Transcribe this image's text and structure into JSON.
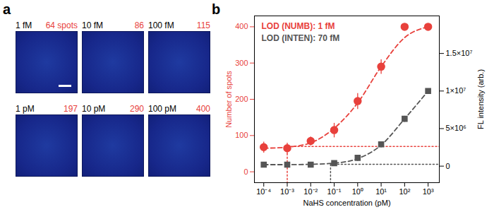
{
  "panel_labels": [
    "a",
    "b"
  ],
  "panel_a": {
    "images": [
      {
        "concentration": "1 fM",
        "count": 64,
        "count_label": "64 spots"
      },
      {
        "concentration": "10 fM",
        "count": 86
      },
      {
        "concentration": "100 fM",
        "count": 115
      },
      {
        "concentration": "1 pM",
        "count": 197
      },
      {
        "concentration": "10 pM",
        "count": 290
      },
      {
        "concentration": "100 pM",
        "count": 400
      }
    ]
  },
  "chart_data": {
    "type": "scatter",
    "log": "x",
    "x_label": "NaHS concentration (pM)",
    "y_label": "Number of spots",
    "y2_label": "FL intensity (arb.)",
    "x": [
      0.0001,
      0.001,
      0.01,
      0.1,
      1,
      10,
      100,
      1000
    ],
    "xlim": [
      4e-05,
      3000
    ],
    "xticks": [
      {
        "value": 0.0001,
        "label": "10⁻⁴"
      },
      {
        "value": 0.001,
        "label": "10⁻³"
      },
      {
        "value": 0.01,
        "label": "10⁻²"
      },
      {
        "value": 0.1,
        "label": "10⁻¹"
      },
      {
        "value": 1,
        "label": "10⁰"
      },
      {
        "value": 10,
        "label": "10¹"
      },
      {
        "value": 100,
        "label": "10²"
      },
      {
        "value": 1000,
        "label": "10³"
      }
    ],
    "ylim": [
      -30,
      430
    ],
    "yticks": [
      0,
      100,
      200,
      300,
      400
    ],
    "y2lim": [
      -2200000,
      20000000
    ],
    "y2ticks": [
      0,
      {
        "value": 5000000,
        "label": "5×10⁶"
      },
      {
        "value": 10000000,
        "label": "1×10⁷"
      },
      {
        "value": 15000000,
        "label": "1.5×10⁷"
      }
    ],
    "series": [
      {
        "name": "NUMB",
        "axis": "y",
        "color": "#e8413c",
        "marker": "circle",
        "line_style": "dashed",
        "values": [
          68,
          65,
          85,
          115,
          195,
          290,
          400,
          400
        ],
        "errors": [
          15,
          15,
          12,
          20,
          22,
          20,
          5,
          5
        ],
        "fit_values": [
          65,
          68,
          80,
          120,
          190,
          290,
          370,
          400
        ],
        "lod": {
          "x": 0.001,
          "y": 70
        },
        "lod_label": "LOD (NUMB): 1 fM"
      },
      {
        "name": "INTEN",
        "axis": "y2",
        "color": "#555555",
        "marker": "square",
        "line_style": "dashed",
        "values": [
          200000,
          200000,
          200000,
          400000,
          1100000,
          2900000,
          6300000,
          10000000
        ],
        "errors": [
          300000,
          300000,
          300000,
          300000,
          400000,
          400000,
          400000,
          200000
        ],
        "fit_values": [
          200000,
          200000,
          250000,
          400000,
          1000000,
          2800000,
          6300000,
          10000000
        ],
        "lod": {
          "x": 0.07,
          "y": 250000
        },
        "lod_label": "LOD (INTEN): 70 fM"
      }
    ]
  }
}
